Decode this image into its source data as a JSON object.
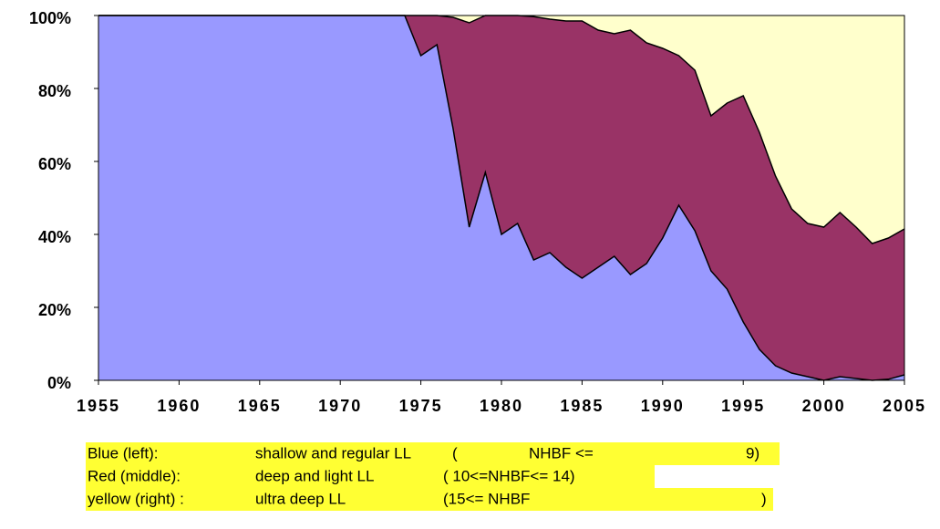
{
  "chart_data": {
    "type": "stacked_area",
    "x": [
      1955,
      1956,
      1957,
      1958,
      1959,
      1960,
      1961,
      1962,
      1963,
      1964,
      1965,
      1966,
      1967,
      1968,
      1969,
      1970,
      1971,
      1972,
      1973,
      1974,
      1975,
      1976,
      1977,
      1978,
      1979,
      1980,
      1981,
      1982,
      1983,
      1984,
      1985,
      1986,
      1987,
      1988,
      1989,
      1990,
      1991,
      1992,
      1993,
      1994,
      1995,
      1996,
      1997,
      1998,
      1999,
      2000,
      2001,
      2002,
      2003,
      2004,
      2005
    ],
    "series": [
      {
        "name": "Blue (left):",
        "color": "#9999ff",
        "values": [
          100,
          100,
          100,
          100,
          100,
          100,
          100,
          100,
          100,
          100,
          100,
          100,
          100,
          100,
          100,
          100,
          100,
          100,
          100,
          100,
          89,
          92,
          69,
          42,
          57,
          40,
          43,
          33,
          35,
          31,
          28,
          31,
          34,
          29,
          32,
          39,
          48,
          41,
          30,
          25,
          16,
          8.5,
          4,
          2,
          1,
          0,
          1,
          0.5,
          0,
          0.3,
          1.5
        ]
      },
      {
        "name": "Red (middle):",
        "color": "#993366",
        "values": [
          0,
          0,
          0,
          0,
          0,
          0,
          0,
          0,
          0,
          0,
          0,
          0,
          0,
          0,
          0,
          0,
          0,
          0,
          0,
          0,
          11,
          8,
          30.5,
          56,
          43,
          60,
          57,
          66.7,
          64,
          67.5,
          70.5,
          65,
          61,
          67,
          60.5,
          52,
          41,
          44,
          42.5,
          51,
          62,
          59.5,
          52,
          45,
          42,
          42,
          45,
          41.5,
          37.5,
          38.7,
          40
        ]
      },
      {
        "name": "yellow (right) :",
        "color": "#ffffcc",
        "values": [
          0,
          0,
          0,
          0,
          0,
          0,
          0,
          0,
          0,
          0,
          0,
          0,
          0,
          0,
          0,
          0,
          0,
          0,
          0,
          0,
          0,
          0,
          0.5,
          2,
          0,
          0,
          0,
          0.3,
          1,
          1.5,
          1.5,
          4,
          5,
          4,
          7.5,
          9,
          11,
          15,
          27.5,
          24,
          22,
          32,
          44,
          53,
          57,
          58,
          54,
          58,
          62.5,
          61,
          58.5
        ]
      }
    ],
    "xlim": [
      1955,
      2005
    ],
    "xticks": [
      1955,
      1960,
      1965,
      1970,
      1975,
      1980,
      1985,
      1990,
      1995,
      2000,
      2005
    ],
    "ylim": [
      0,
      100
    ],
    "yticks": [
      {
        "value": 0,
        "label": "0%"
      },
      {
        "value": 20,
        "label": "20%"
      },
      {
        "value": 40,
        "label": "40%"
      },
      {
        "value": 60,
        "label": "60%"
      },
      {
        "value": 80,
        "label": "80%"
      },
      {
        "value": 100,
        "label": "100%"
      }
    ],
    "legend_notes": [
      [
        "shallow and regular LL",
        "(",
        "NHBF <=",
        "9)"
      ],
      [
        "deep and light LL",
        "( 10<=NHBF<= 14)"
      ],
      [
        "ultra deep LL",
        "(15<= NHBF",
        ")"
      ]
    ]
  }
}
